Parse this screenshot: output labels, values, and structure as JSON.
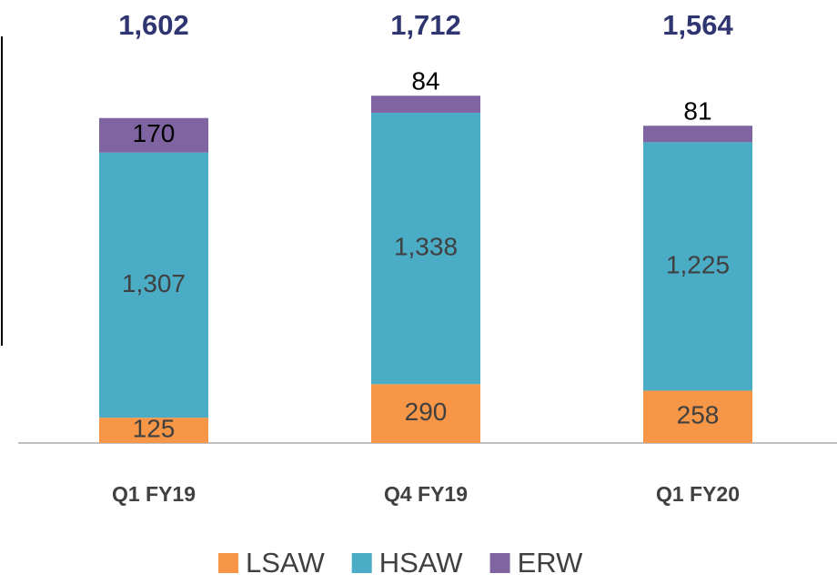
{
  "chart_data": {
    "type": "stacked_bar",
    "categories": [
      "Q1 FY19",
      "Q4 FY19",
      "Q1 FY20"
    ],
    "series": [
      {
        "name": "LSAW",
        "color": "#f79646",
        "values": [
          125,
          290,
          258
        ]
      },
      {
        "name": "HSAW",
        "color": "#4bacc6",
        "values": [
          1307,
          1338,
          1225
        ],
        "value_labels": [
          "1,307",
          "1,338",
          "1,225"
        ]
      },
      {
        "name": "ERW",
        "color": "#8064a2",
        "values": [
          170,
          84,
          81
        ]
      }
    ],
    "totals": [
      1602,
      1712,
      1564
    ],
    "total_labels": [
      "1,602",
      "1,712",
      "1,564"
    ],
    "ylim": [
      0,
      2000
    ]
  }
}
